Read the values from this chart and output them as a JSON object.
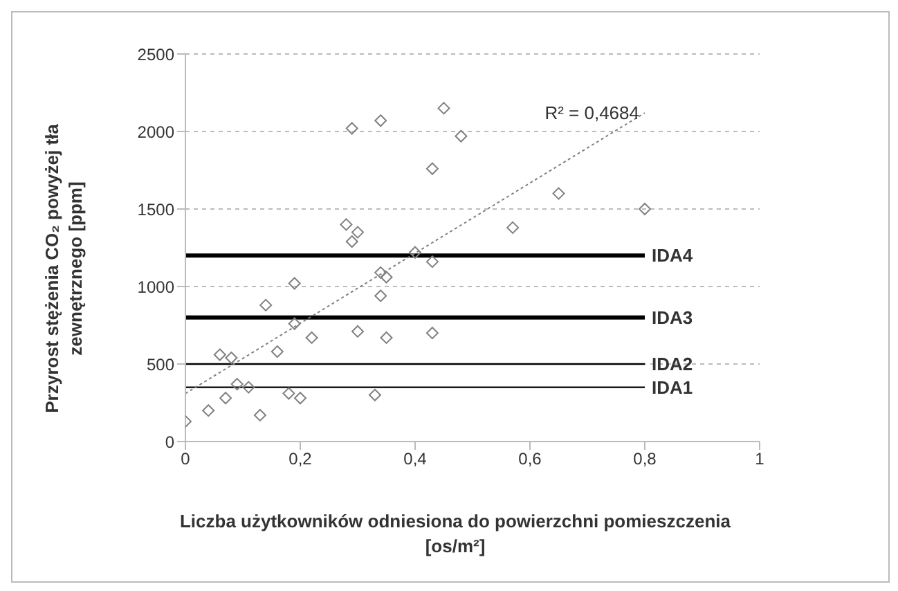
{
  "chart_data": {
    "type": "scatter",
    "xlabel": "Liczba użytkowników odniesiona do powierzchni pomieszczenia [os/m²]",
    "ylabel": "Przyrost stężenia CO₂ powyżej tła zewnętrznego [ppm]",
    "xlim": [
      0,
      1
    ],
    "xticks": [
      0,
      {
        "value": 0.2,
        "label": "0,2"
      },
      {
        "value": 0.4,
        "label": "0,4"
      },
      {
        "value": 0.6,
        "label": "0,6"
      },
      {
        "value": 0.8,
        "label": "0,8"
      },
      1
    ],
    "ylim": [
      0,
      2500
    ],
    "yticks": [
      0,
      500,
      1000,
      1500,
      2000,
      2500
    ],
    "grid": "y",
    "legend": false,
    "series": [
      {
        "color": "#808080",
        "marker": "diamond",
        "x": [
          0,
          0.04,
          0.06,
          0.07,
          0.08,
          0.09,
          0.11,
          0.13,
          0.14,
          0.16,
          0.18,
          0.19,
          0.19,
          0.2,
          0.22,
          0.28,
          0.29,
          0.29,
          0.3,
          0.3,
          0.33,
          0.34,
          0.34,
          0.34,
          0.35,
          0.35,
          0.4,
          0.43,
          0.43,
          0.43,
          0.45,
          0.48,
          0.57,
          0.65,
          0.8
        ],
        "values": [
          130,
          200,
          560,
          280,
          540,
          370,
          350,
          170,
          880,
          580,
          310,
          760,
          1020,
          280,
          670,
          1400,
          2020,
          1290,
          1350,
          710,
          300,
          2070,
          1090,
          940,
          670,
          1060,
          1220,
          1760,
          1160,
          700,
          2150,
          1970,
          1380,
          1600,
          1500
        ]
      },
      {
        "type": "line",
        "color": "#808080",
        "marker": "none",
        "line_style": "dotted",
        "x": [
          0,
          0.8
        ],
        "values": [
          310,
          2120
        ]
      }
    ],
    "ref_lines": [
      {
        "axis": "y",
        "value": 350,
        "label": "IDA1",
        "color": "#000000"
      },
      {
        "axis": "y",
        "value": 500,
        "label": "IDA2",
        "color": "#000000"
      },
      {
        "axis": "y",
        "value": 800,
        "label": "IDA3",
        "color": "#000000"
      },
      {
        "axis": "y",
        "value": 1200,
        "label": "IDA4",
        "color": "#000000"
      }
    ],
    "annotations": [
      {
        "text": "R² = 0,4684",
        "x": 0.8,
        "y": 2120
      }
    ]
  }
}
